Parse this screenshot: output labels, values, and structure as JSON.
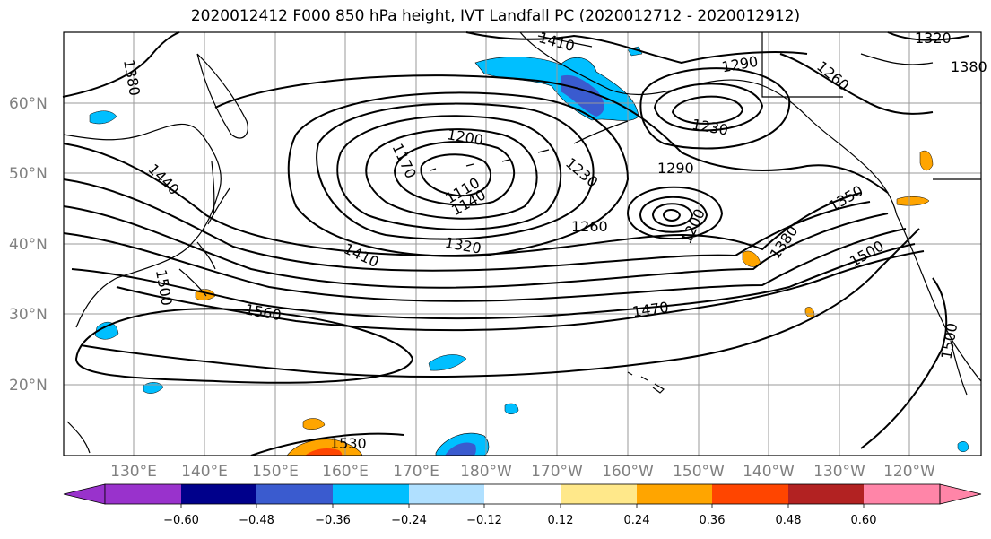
{
  "title": "2020012412 F000 850 hPa height, IVT Landfall PC (2020012712 - 2020012912)",
  "lat_ticks": [
    "60°N",
    "50°N",
    "40°N",
    "30°N",
    "20°N"
  ],
  "lon_ticks": [
    "130°E",
    "140°E",
    "150°E",
    "160°E",
    "170°E",
    "180°W",
    "170°W",
    "160°W",
    "150°W",
    "140°W",
    "130°W",
    "120°W"
  ],
  "colorbar": {
    "colors": [
      "#9932cc",
      "#00008b",
      "#3a5bcf",
      "#00bfff",
      "#b0e0ff",
      "#ffffff",
      "#ffe88a",
      "#ffa500",
      "#ff4500",
      "#b22222",
      "#ff85a8"
    ],
    "labels": [
      "−0.60",
      "−0.48",
      "−0.36",
      "−0.24",
      "−0.12",
      "0.12",
      "0.24",
      "0.36",
      "0.48",
      "0.60"
    ]
  },
  "contour_labels": [
    "1410",
    "1320",
    "1380",
    "1290",
    "1260",
    "1200",
    "1170",
    "1110",
    "1140",
    "1230",
    "1290",
    "1230",
    "1260",
    "1200",
    "1350",
    "1380",
    "1500",
    "1440",
    "1410",
    "1320",
    "1470",
    "1500",
    "1560",
    "1500",
    "1530",
    "1380"
  ]
}
